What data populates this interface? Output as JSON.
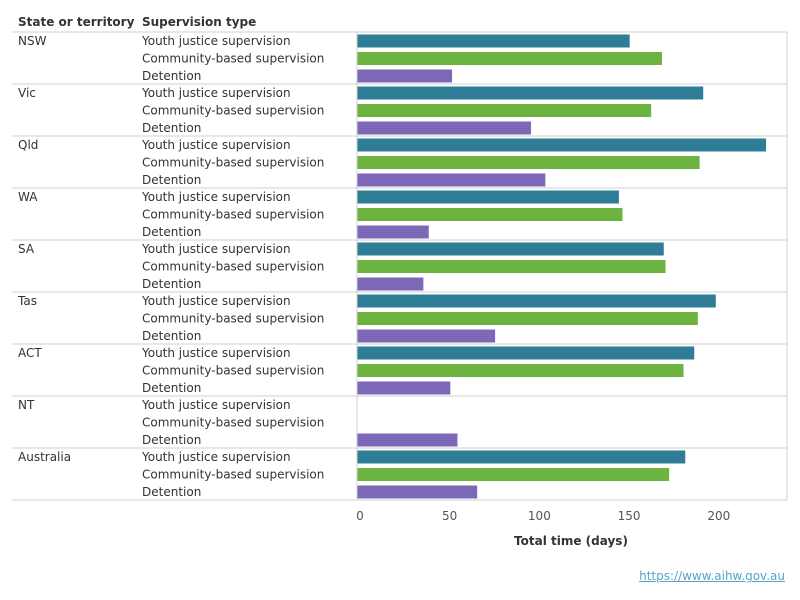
{
  "headers": {
    "state": "State or territory",
    "type": "Supervision type"
  },
  "source_link": "https://www.aihw.gov.au",
  "colors": {
    "youth_justice": "#2e7c96",
    "community": "#6db33f",
    "detention": "#7d68b8"
  },
  "chart_data": {
    "type": "bar",
    "orientation": "horizontal",
    "xlabel": "Total time (days)",
    "xlim": [
      0,
      230
    ],
    "x_ticks": [
      0,
      50,
      100,
      150,
      200
    ],
    "series_names": [
      "Youth justice supervision",
      "Community-based supervision",
      "Detention"
    ],
    "groups": [
      {
        "state": "NSW",
        "values": [
          152,
          170,
          53
        ]
      },
      {
        "state": "Vic",
        "values": [
          193,
          164,
          97
        ]
      },
      {
        "state": "Qld",
        "values": [
          228,
          191,
          105
        ]
      },
      {
        "state": "WA",
        "values": [
          146,
          148,
          40
        ]
      },
      {
        "state": "SA",
        "values": [
          171,
          172,
          37
        ]
      },
      {
        "state": "Tas",
        "values": [
          200,
          190,
          77
        ]
      },
      {
        "state": "ACT",
        "values": [
          188,
          182,
          52
        ]
      },
      {
        "state": "NT",
        "values": [
          null,
          null,
          56
        ]
      },
      {
        "state": "Australia",
        "values": [
          183,
          174,
          67
        ]
      }
    ]
  }
}
